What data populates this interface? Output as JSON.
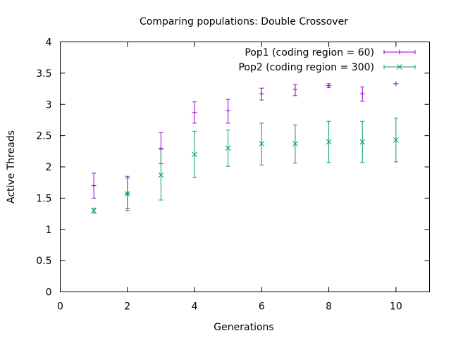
{
  "chart_data": {
    "type": "scatter",
    "title": "Comparing populations: Double Crossover",
    "xlabel": "Generations",
    "ylabel": "Active Threads",
    "xlim": [
      0,
      11
    ],
    "ylim": [
      0,
      4
    ],
    "xticks": [
      0,
      2,
      4,
      6,
      8,
      10
    ],
    "yticks": [
      0,
      0.5,
      1,
      1.5,
      2,
      2.5,
      3,
      3.5,
      4
    ],
    "grid": false,
    "legend_position": "top-right",
    "series": [
      {
        "name": "Pop1 (coding region = 60)",
        "color": "#9400d3",
        "marker": "plus",
        "x": [
          1,
          2,
          3,
          4,
          5,
          6,
          7,
          8,
          9,
          10
        ],
        "y": [
          1.7,
          1.57,
          2.3,
          2.87,
          2.9,
          3.17,
          3.24,
          3.3,
          3.17,
          3.33
        ],
        "err_low": [
          1.5,
          1.3,
          2.05,
          2.7,
          2.7,
          3.07,
          3.14,
          3.27,
          3.05,
          3.33
        ],
        "err_high": [
          1.9,
          1.85,
          2.55,
          3.04,
          3.08,
          3.26,
          3.32,
          3.33,
          3.28,
          3.33
        ]
      },
      {
        "name": "Pop2 (coding region = 300)",
        "color": "#009e73",
        "marker": "cross",
        "x": [
          1,
          2,
          3,
          4,
          5,
          6,
          7,
          8,
          9,
          10
        ],
        "y": [
          1.3,
          1.57,
          1.87,
          2.2,
          2.3,
          2.37,
          2.37,
          2.4,
          2.4,
          2.43
        ],
        "err_low": [
          1.26,
          1.33,
          1.47,
          1.83,
          2.01,
          2.03,
          2.06,
          2.07,
          2.07,
          2.08
        ],
        "err_high": [
          1.34,
          1.82,
          2.28,
          2.57,
          2.59,
          2.7,
          2.67,
          2.73,
          2.73,
          2.78
        ]
      }
    ]
  }
}
